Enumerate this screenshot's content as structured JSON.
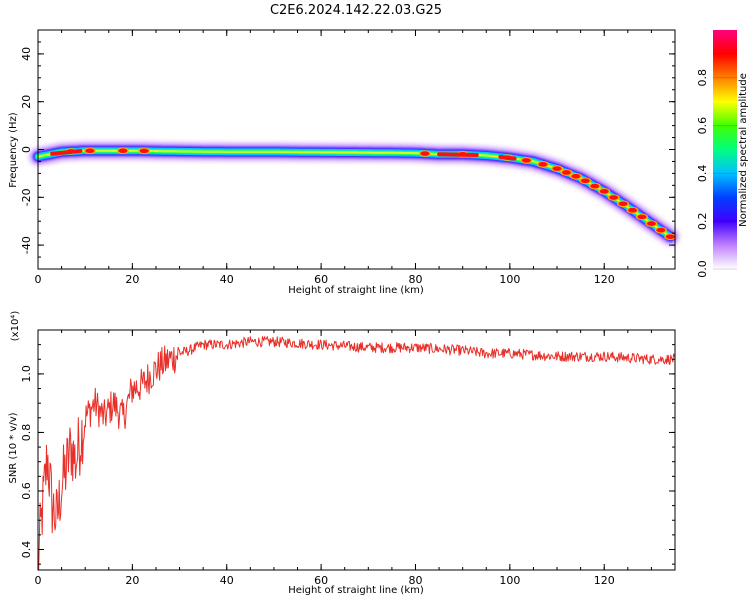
{
  "title": "C2E6.2024.142.22.03.G25",
  "chart_data": [
    {
      "type": "heatmap",
      "xlabel": "Height of straight line (km)",
      "ylabel": "Frequency (Hz)",
      "xlim": [
        0,
        135
      ],
      "ylim": [
        -50,
        50
      ],
      "x_ticks": [
        0,
        20,
        40,
        60,
        80,
        100,
        120
      ],
      "y_ticks": [
        -40,
        -20,
        0,
        20,
        40
      ],
      "grid": false,
      "colorbar": {
        "label": "Normalized spectral amplitude",
        "range": [
          0,
          1
        ],
        "ticks": [
          "0.0",
          "0.2",
          "0.4",
          "0.6",
          "0.8"
        ],
        "colormap": [
          "#ffffff",
          "#c080ff",
          "#4000ff",
          "#0040ff",
          "#00c0ff",
          "#00ff80",
          "#40ff00",
          "#ffff00",
          "#ff8000",
          "#ff0000",
          "#ff0080"
        ]
      },
      "ridge_x": [
        0,
        5,
        10,
        20,
        30,
        40,
        50,
        60,
        70,
        80,
        85,
        90,
        95,
        100,
        105,
        110,
        115,
        120,
        125,
        130,
        134
      ],
      "ridge_y": [
        -3,
        -1,
        -0.5,
        -0.5,
        -0.8,
        -1,
        -1,
        -1.2,
        -1.3,
        -1.5,
        -2,
        -2,
        -2.5,
        -3.5,
        -5,
        -8,
        -12,
        -17.5,
        -24,
        -31,
        -36.5
      ],
      "hot_spots_x": [
        7,
        11,
        18,
        22.5,
        82,
        90,
        99.5,
        103.5,
        107,
        110,
        112,
        114,
        116,
        118,
        120,
        122,
        124,
        126,
        128,
        130,
        132,
        134
      ]
    },
    {
      "type": "line",
      "xlabel": "Height of straight line (km)",
      "ylabel": "SNR (10 * v/v)",
      "y_multiplier": "(x10⁴)",
      "xlim": [
        0,
        135
      ],
      "ylim": [
        0.33,
        1.15
      ],
      "x_ticks": [
        0,
        20,
        40,
        60,
        80,
        100,
        120
      ],
      "y_ticks": [
        0.4,
        0.6,
        0.8,
        1.0
      ],
      "y_tick_labels": [
        "0.4",
        "0.6",
        "0.8",
        "1.0"
      ],
      "grid": false,
      "series": [
        {
          "color": "#e8302a",
          "x": [
            0,
            1,
            2,
            3,
            4,
            5,
            6,
            7,
            8,
            9,
            10,
            12,
            14,
            16,
            18,
            20,
            22,
            24,
            26,
            28,
            30,
            32,
            35,
            40,
            45,
            50,
            60,
            70,
            80,
            90,
            95,
            100,
            110,
            120,
            130,
            135
          ],
          "values": [
            0.35,
            0.55,
            0.72,
            0.55,
            0.5,
            0.62,
            0.68,
            0.75,
            0.7,
            0.78,
            0.85,
            0.9,
            0.85,
            0.9,
            0.85,
            0.95,
            0.96,
            1.0,
            1.03,
            1.05,
            1.07,
            1.08,
            1.1,
            1.1,
            1.11,
            1.11,
            1.1,
            1.09,
            1.09,
            1.08,
            1.07,
            1.07,
            1.06,
            1.06,
            1.05,
            1.05
          ]
        }
      ]
    }
  ]
}
